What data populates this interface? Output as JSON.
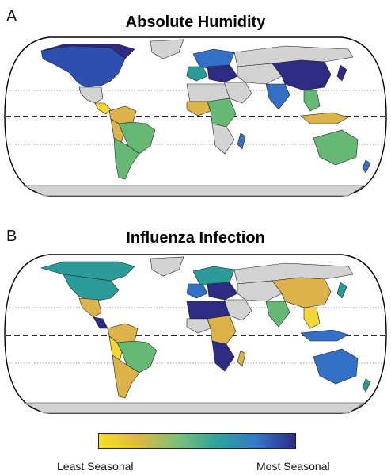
{
  "panels": [
    {
      "letter": "A",
      "title": "Absolute Humidity"
    },
    {
      "letter": "B",
      "title": "Influenza Infection"
    }
  ],
  "legend": {
    "left_label": "Least Seasonal",
    "right_label": "Most Seasonal",
    "colors": [
      "#f5e11f",
      "#e0b93f",
      "#7dc07a",
      "#2ea39a",
      "#3579c7",
      "#2c2a8a"
    ]
  },
  "map_colors": {
    "no_data": "#d3d3d3",
    "ocean": "#ffffff",
    "yellow": "#f3d637",
    "gold": "#dcb24b",
    "green": "#67b874",
    "teal": "#2b9b9a",
    "blue": "#3470c5",
    "navy": "#2d2b82"
  }
}
